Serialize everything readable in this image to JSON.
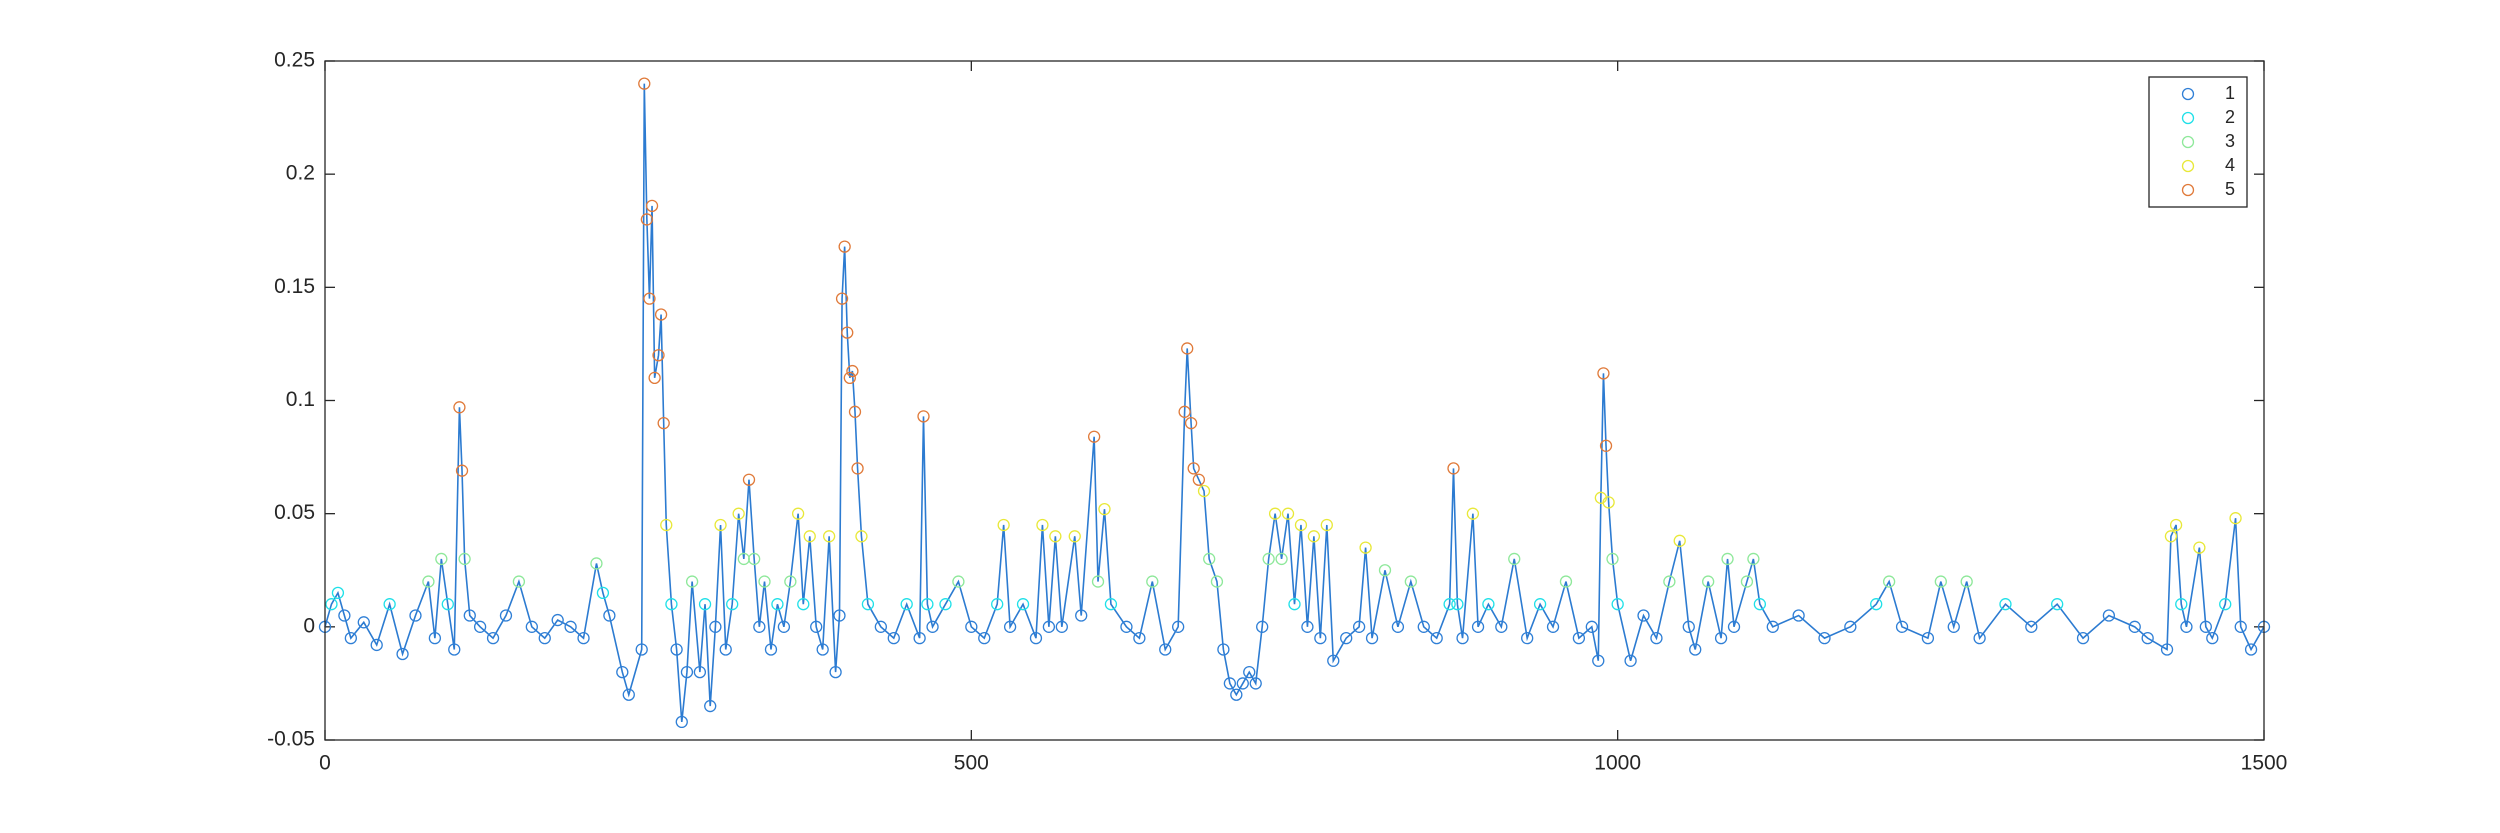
{
  "chart_data": {
    "type": "line",
    "line_color": "#2c7bd1",
    "x": [
      0,
      5,
      10,
      15,
      20,
      30,
      40,
      50,
      60,
      70,
      80,
      85,
      90,
      95,
      100,
      104,
      106,
      108,
      112,
      120,
      130,
      140,
      150,
      160,
      170,
      180,
      190,
      200,
      210,
      215,
      220,
      230,
      235,
      245,
      247,
      249,
      251,
      253,
      255,
      258,
      260,
      262,
      264,
      268,
      272,
      276,
      280,
      284,
      290,
      294,
      298,
      302,
      306,
      310,
      315,
      320,
      324,
      328,
      332,
      336,
      340,
      345,
      350,
      355,
      360,
      366,
      370,
      375,
      380,
      385,
      390,
      395,
      398,
      400,
      402,
      404,
      406,
      408,
      410,
      412,
      415,
      420,
      430,
      440,
      450,
      460,
      463,
      466,
      470,
      480,
      490,
      500,
      510,
      520,
      525,
      530,
      540,
      550,
      555,
      560,
      565,
      570,
      580,
      585,
      595,
      598,
      603,
      608,
      620,
      630,
      640,
      650,
      660,
      665,
      667,
      670,
      672,
      676,
      680,
      684,
      690,
      695,
      700,
      705,
      710,
      715,
      720,
      725,
      730,
      735,
      740,
      745,
      750,
      755,
      760,
      765,
      770,
      775,
      780,
      790,
      800,
      805,
      810,
      820,
      830,
      840,
      850,
      860,
      870,
      873,
      876,
      880,
      888,
      892,
      900,
      910,
      920,
      930,
      940,
      950,
      960,
      970,
      980,
      985,
      987,
      989,
      991,
      993,
      996,
      1000,
      1010,
      1020,
      1030,
      1040,
      1048,
      1055,
      1060,
      1070,
      1080,
      1085,
      1090,
      1100,
      1105,
      1110,
      1120,
      1140,
      1160,
      1180,
      1200,
      1210,
      1220,
      1240,
      1250,
      1260,
      1270,
      1280,
      1300,
      1320,
      1340,
      1360,
      1380,
      1400,
      1410,
      1425,
      1428,
      1432,
      1436,
      1440,
      1450,
      1455,
      1460,
      1470,
      1478,
      1482,
      1490,
      1500
    ],
    "values": [
      0,
      0.01,
      0.015,
      0.005,
      -0.005,
      0.002,
      -0.008,
      0.01,
      -0.012,
      0.005,
      0.02,
      -0.005,
      0.03,
      0.01,
      -0.01,
      0.097,
      0.069,
      0.03,
      0.005,
      0,
      -0.005,
      0.005,
      0.02,
      0,
      -0.005,
      0.003,
      0,
      -0.005,
      0.028,
      0.015,
      0.005,
      -0.02,
      -0.03,
      -0.01,
      0.24,
      0.18,
      0.145,
      0.186,
      0.11,
      0.12,
      0.138,
      0.09,
      0.045,
      0.01,
      -0.01,
      -0.042,
      -0.02,
      0.02,
      -0.02,
      0.01,
      -0.035,
      0,
      0.045,
      -0.01,
      0.01,
      0.05,
      0.03,
      0.065,
      0.03,
      0,
      0.02,
      -0.01,
      0.01,
      0,
      0.02,
      0.05,
      0.01,
      0.04,
      0,
      -0.01,
      0.04,
      -0.02,
      0.005,
      0.145,
      0.168,
      0.13,
      0.11,
      0.113,
      0.095,
      0.07,
      0.04,
      0.01,
      0,
      -0.005,
      0.01,
      -0.005,
      0.093,
      0.01,
      0,
      0.01,
      0.02,
      0,
      -0.005,
      0.01,
      0.045,
      0,
      0.01,
      -0.005,
      0.045,
      0,
      0.04,
      0,
      0.04,
      0.005,
      0.084,
      0.02,
      0.052,
      0.01,
      0,
      -0.005,
      0.02,
      -0.01,
      0,
      0.095,
      0.123,
      0.09,
      0.07,
      0.065,
      0.06,
      0.03,
      0.02,
      -0.01,
      -0.025,
      -0.03,
      -0.025,
      -0.02,
      -0.025,
      0,
      0.03,
      0.05,
      0.03,
      0.05,
      0.01,
      0.045,
      0,
      0.04,
      -0.005,
      0.045,
      -0.015,
      -0.005,
      0,
      0.035,
      -0.005,
      0.025,
      0,
      0.02,
      0,
      -0.005,
      0.01,
      0.07,
      0.01,
      -0.005,
      0.05,
      0,
      0.01,
      0,
      0.03,
      -0.005,
      0.01,
      0,
      0.02,
      -0.005,
      0,
      -0.015,
      0.057,
      0.112,
      0.08,
      0.055,
      0.03,
      0.01,
      -0.015,
      0.005,
      -0.005,
      0.02,
      0.038,
      0,
      -0.01,
      0.02,
      -0.005,
      0.03,
      0,
      0.02,
      0.03,
      0.01,
      0,
      0.005,
      -0.005,
      0,
      0.01,
      0.02,
      0,
      -0.005,
      0.02,
      0,
      0.02,
      -0.005,
      0.01,
      0,
      0.01,
      -0.005,
      0.005,
      0,
      -0.005,
      -0.01,
      0.04,
      0.045,
      0.01,
      0,
      0.035,
      0,
      -0.005,
      0.01,
      0.048,
      0,
      -0.01,
      0
    ],
    "series": [
      {
        "name": "1",
        "color": "#2f7fd6",
        "x": [
          0,
          15,
          20,
          30,
          40,
          60,
          70,
          85,
          100,
          112,
          120,
          130,
          140,
          160,
          170,
          180,
          190,
          200,
          220,
          230,
          235,
          245,
          272,
          276,
          280,
          290,
          298,
          302,
          310,
          336,
          345,
          355,
          380,
          385,
          395,
          398,
          430,
          440,
          460,
          470,
          500,
          510,
          530,
          550,
          560,
          570,
          585,
          620,
          630,
          650,
          660,
          695,
          700,
          705,
          710,
          715,
          720,
          725,
          760,
          770,
          780,
          790,
          800,
          810,
          830,
          850,
          860,
          880,
          892,
          910,
          930,
          950,
          970,
          980,
          985,
          1010,
          1020,
          1030,
          1055,
          1060,
          1080,
          1090,
          1120,
          1140,
          1160,
          1180,
          1220,
          1240,
          1260,
          1280,
          1320,
          1360,
          1380,
          1400,
          1410,
          1425,
          1440,
          1455,
          1460,
          1482,
          1490,
          1500
        ],
        "values": [
          0,
          0.005,
          -0.005,
          0.002,
          -0.008,
          -0.012,
          0.005,
          -0.005,
          -0.01,
          0.005,
          0,
          -0.005,
          0.005,
          0,
          -0.005,
          0.003,
          0,
          -0.005,
          0.005,
          -0.02,
          -0.03,
          -0.01,
          -0.01,
          -0.042,
          -0.02,
          -0.02,
          -0.035,
          0,
          -0.01,
          0,
          -0.01,
          0,
          0,
          -0.01,
          -0.02,
          0.005,
          0,
          -0.005,
          -0.005,
          0,
          0,
          -0.005,
          0,
          -0.005,
          0,
          0,
          0.005,
          0,
          -0.005,
          -0.01,
          0,
          -0.01,
          -0.025,
          -0.03,
          -0.025,
          -0.02,
          -0.025,
          0,
          0,
          -0.005,
          -0.015,
          -0.005,
          0,
          -0.005,
          0,
          0,
          -0.005,
          -0.005,
          0,
          0,
          -0.005,
          0,
          -0.005,
          0,
          -0.015,
          -0.015,
          0.005,
          -0.005,
          0,
          -0.01,
          -0.005,
          0,
          0,
          0.005,
          -0.005,
          0,
          0,
          -0.005,
          0,
          -0.005,
          0,
          -0.005,
          0.005,
          0,
          -0.005,
          -0.01,
          0,
          0,
          -0.005,
          0,
          -0.01,
          0
        ]
      },
      {
        "name": "2",
        "color": "#1fe0e8",
        "x": [
          5,
          10,
          50,
          95,
          215,
          268,
          294,
          315,
          350,
          370,
          420,
          450,
          466,
          480,
          520,
          540,
          608,
          750,
          870,
          876,
          900,
          940,
          1000,
          1110,
          1200,
          1300,
          1340,
          1436,
          1470
        ],
        "values": [
          0.01,
          0.015,
          0.01,
          0.01,
          0.015,
          0.01,
          0.01,
          0.01,
          0.01,
          0.01,
          0.01,
          0.01,
          0.01,
          0.01,
          0.01,
          0.01,
          0.01,
          0.01,
          0.01,
          0.01,
          0.01,
          0.01,
          0.01,
          0.01,
          0.01,
          0.01,
          0.01,
          0.01,
          0.01
        ]
      },
      {
        "name": "3",
        "color": "#8ee89a",
        "x": [
          80,
          90,
          108,
          150,
          210,
          284,
          324,
          332,
          340,
          360,
          490,
          598,
          640,
          684,
          690,
          730,
          740,
          820,
          840,
          920,
          960,
          996,
          1040,
          1070,
          1085,
          1100,
          1105,
          1210,
          1250,
          1270
        ],
        "values": [
          0.02,
          0.03,
          0.03,
          0.02,
          0.028,
          0.02,
          0.03,
          0.03,
          0.02,
          0.02,
          0.02,
          0.02,
          0.02,
          0.03,
          0.02,
          0.03,
          0.03,
          0.025,
          0.02,
          0.03,
          0.02,
          0.03,
          0.02,
          0.02,
          0.03,
          0.02,
          0.03,
          0.02,
          0.02,
          0.02
        ]
      },
      {
        "name": "4",
        "color": "#e8e838",
        "x": [
          264,
          306,
          320,
          366,
          375,
          390,
          415,
          525,
          555,
          565,
          580,
          603,
          680,
          735,
          745,
          755,
          765,
          775,
          805,
          888,
          987,
          993,
          1048,
          1428,
          1432,
          1450,
          1478
        ],
        "values": [
          0.045,
          0.045,
          0.05,
          0.05,
          0.04,
          0.04,
          0.04,
          0.045,
          0.045,
          0.04,
          0.04,
          0.052,
          0.06,
          0.05,
          0.05,
          0.045,
          0.04,
          0.045,
          0.035,
          0.05,
          0.057,
          0.055,
          0.038,
          0.04,
          0.045,
          0.035,
          0.048
        ]
      },
      {
        "name": "5",
        "color": "#e07a3a",
        "x": [
          104,
          106,
          247,
          249,
          251,
          253,
          255,
          258,
          260,
          262,
          328,
          400,
          402,
          404,
          406,
          408,
          410,
          412,
          463,
          595,
          665,
          667,
          670,
          672,
          676,
          873,
          989,
          991
        ],
        "values": [
          0.097,
          0.069,
          0.24,
          0.18,
          0.145,
          0.186,
          0.11,
          0.12,
          0.138,
          0.09,
          0.065,
          0.145,
          0.168,
          0.13,
          0.11,
          0.113,
          0.095,
          0.07,
          0.093,
          0.084,
          0.095,
          0.123,
          0.09,
          0.07,
          0.065,
          0.07,
          0.112,
          0.08
        ]
      }
    ],
    "xlim": [
      0,
      1500
    ],
    "xticks": [
      0,
      500,
      1000,
      1500
    ],
    "ylim": [
      -0.05,
      0.25
    ],
    "yticks": [
      -0.05,
      0,
      0.05,
      0.1,
      0.15,
      0.2,
      0.25
    ],
    "legend": "top-right",
    "grid": false
  }
}
